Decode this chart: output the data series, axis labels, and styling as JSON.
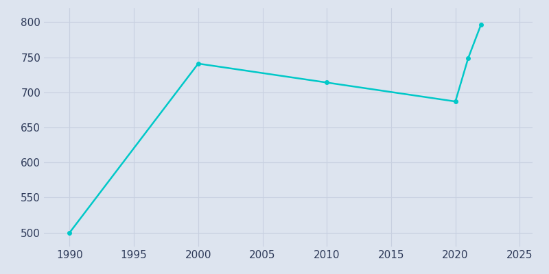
{
  "years": [
    1990,
    2000,
    2010,
    2020,
    2021,
    2022
  ],
  "population": [
    500,
    741,
    714,
    687,
    749,
    797
  ],
  "line_color": "#00C8C8",
  "marker_color": "#00C8C8",
  "bg_color": "#DDE4EF",
  "plot_bg_color": "#DDE4EF",
  "grid_color": "#C8D0E0",
  "text_color": "#2E3A59",
  "xlim": [
    1988,
    2026
  ],
  "ylim": [
    480,
    820
  ],
  "yticks": [
    500,
    550,
    600,
    650,
    700,
    750,
    800
  ],
  "xticks": [
    1990,
    1995,
    2000,
    2005,
    2010,
    2015,
    2020,
    2025
  ],
  "figsize": [
    8.0,
    4.0
  ],
  "dpi": 100,
  "linewidth": 1.8,
  "markersize": 4
}
